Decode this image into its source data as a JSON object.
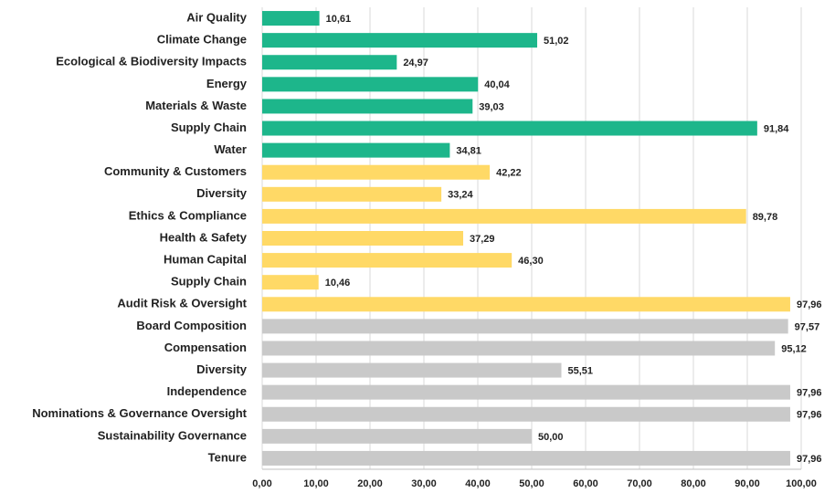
{
  "chart_data": {
    "type": "barh",
    "categories": [
      "Air Quality",
      "Climate Change",
      "Ecological & Biodiversity Impacts",
      "Energy",
      "Materials & Waste",
      "Supply Chain",
      "Water",
      "Community & Customers",
      "Diversity",
      "Ethics & Compliance",
      "Health & Safety",
      "Human Capital",
      "Supply Chain",
      "Audit Risk & Oversight",
      "Board Composition",
      "Compensation",
      "Diversity",
      "Independence",
      "Nominations & Governance Oversight",
      "Sustainability Governance",
      "Tenure"
    ],
    "values": [
      10.61,
      51.02,
      24.97,
      40.04,
      39.03,
      91.84,
      34.81,
      42.22,
      33.24,
      89.78,
      37.29,
      46.3,
      10.46,
      97.96,
      97.57,
      95.12,
      55.51,
      97.96,
      97.96,
      50.0,
      97.96
    ],
    "value_labels": [
      "10,61",
      "51,02",
      "24,97",
      "40,04",
      "39,03",
      "91,84",
      "34,81",
      "42,22",
      "33,24",
      "89,78",
      "37,29",
      "46,30",
      "10,46",
      "97,96",
      "97,57",
      "95,12",
      "55,51",
      "97,96",
      "97,96",
      "50,00",
      "97,96"
    ],
    "colors": [
      "#1db68b",
      "#1db68b",
      "#1db68b",
      "#1db68b",
      "#1db68b",
      "#1db68b",
      "#1db68b",
      "#ffd966",
      "#ffd966",
      "#ffd966",
      "#ffd966",
      "#ffd966",
      "#ffd966",
      "#ffd966",
      "#c9c9c9",
      "#c9c9c9",
      "#c9c9c9",
      "#c9c9c9",
      "#c9c9c9",
      "#c9c9c9",
      "#c9c9c9"
    ],
    "xlim": [
      0,
      100
    ],
    "xticks": [
      {
        "value": 0,
        "label": "0,00"
      },
      {
        "value": 10,
        "label": "10,00"
      },
      {
        "value": 20,
        "label": "20,00"
      },
      {
        "value": 30,
        "label": "30,00"
      },
      {
        "value": 40,
        "label": "40,00"
      },
      {
        "value": 50,
        "label": "50,00"
      },
      {
        "value": 60,
        "label": "60,00"
      },
      {
        "value": 70,
        "label": "70,00"
      },
      {
        "value": 80,
        "label": "80,00"
      },
      {
        "value": 90,
        "label": "90,00"
      },
      {
        "value": 100,
        "label": "100,00"
      }
    ],
    "grid": true
  }
}
